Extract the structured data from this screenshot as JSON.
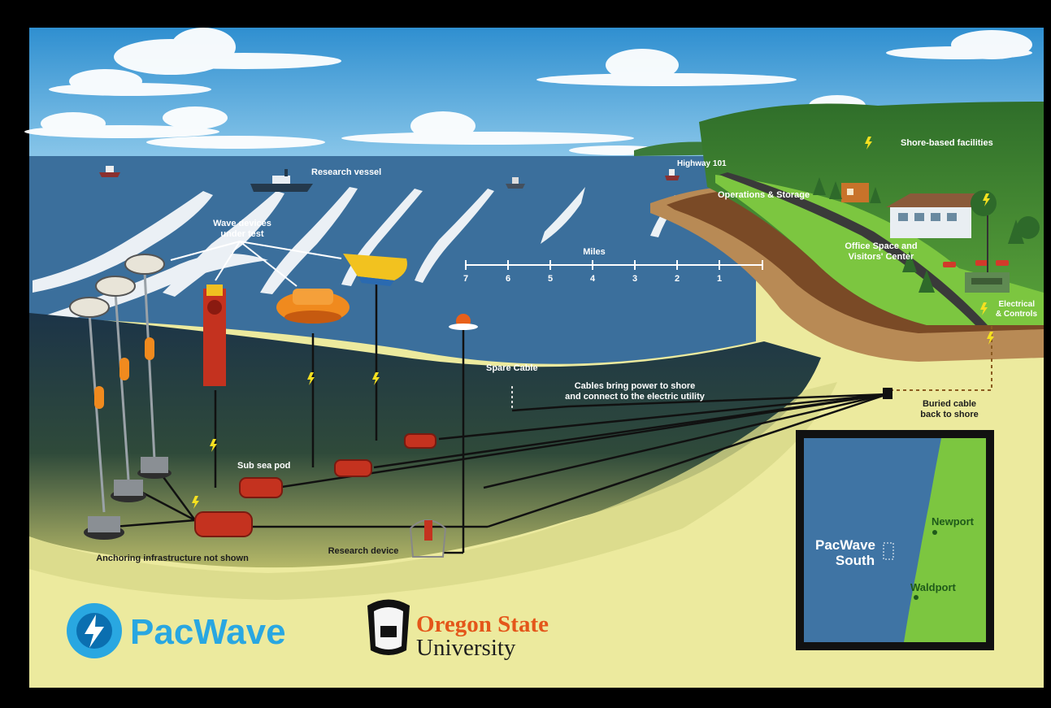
{
  "labels": {
    "research_vessel": "Research vessel",
    "wave_devices_line1": "Wave devices",
    "wave_devices_line2": "under test",
    "miles": "Miles",
    "highway": "Highway 101",
    "shore_facilities": "Shore-based facilities",
    "operations_storage": "Operations & Storage",
    "office_line1": "Office Space and",
    "office_line2": "Visitors' Center",
    "electrical_line1": "Electrical",
    "electrical_line2": "& Controls",
    "spare_cable": "Spare Cable",
    "cables_line1": "Cables bring power to shore",
    "cables_line2": "and connect to the electric utility",
    "buried_line1": "Buried cable",
    "buried_line2": "back to shore",
    "sub_sea_pod": "Sub sea pod",
    "anchoring": "Anchoring infrastructure not shown",
    "research_device": "Research device"
  },
  "scale_ticks": [
    "7",
    "6",
    "5",
    "4",
    "3",
    "2",
    "1"
  ],
  "inset_map": {
    "site_line1": "PacWave",
    "site_line2": "South",
    "city_north": "Newport",
    "city_south": "Waldport"
  },
  "logos": {
    "pacwave": "PacWave",
    "osu_line1": "Oregon State",
    "osu_line2": "University"
  },
  "colors": {
    "sky": "#49a3d9",
    "ocean": "#3d72a0",
    "deep_water": "#1f3b52",
    "seabed": "#ece9a0",
    "land_green": "#7cc640",
    "device_red": "#c4321f",
    "device_orange": "#f08a1e",
    "osu_orange": "#e4561a",
    "pacwave_blue": "#29a7e1"
  }
}
